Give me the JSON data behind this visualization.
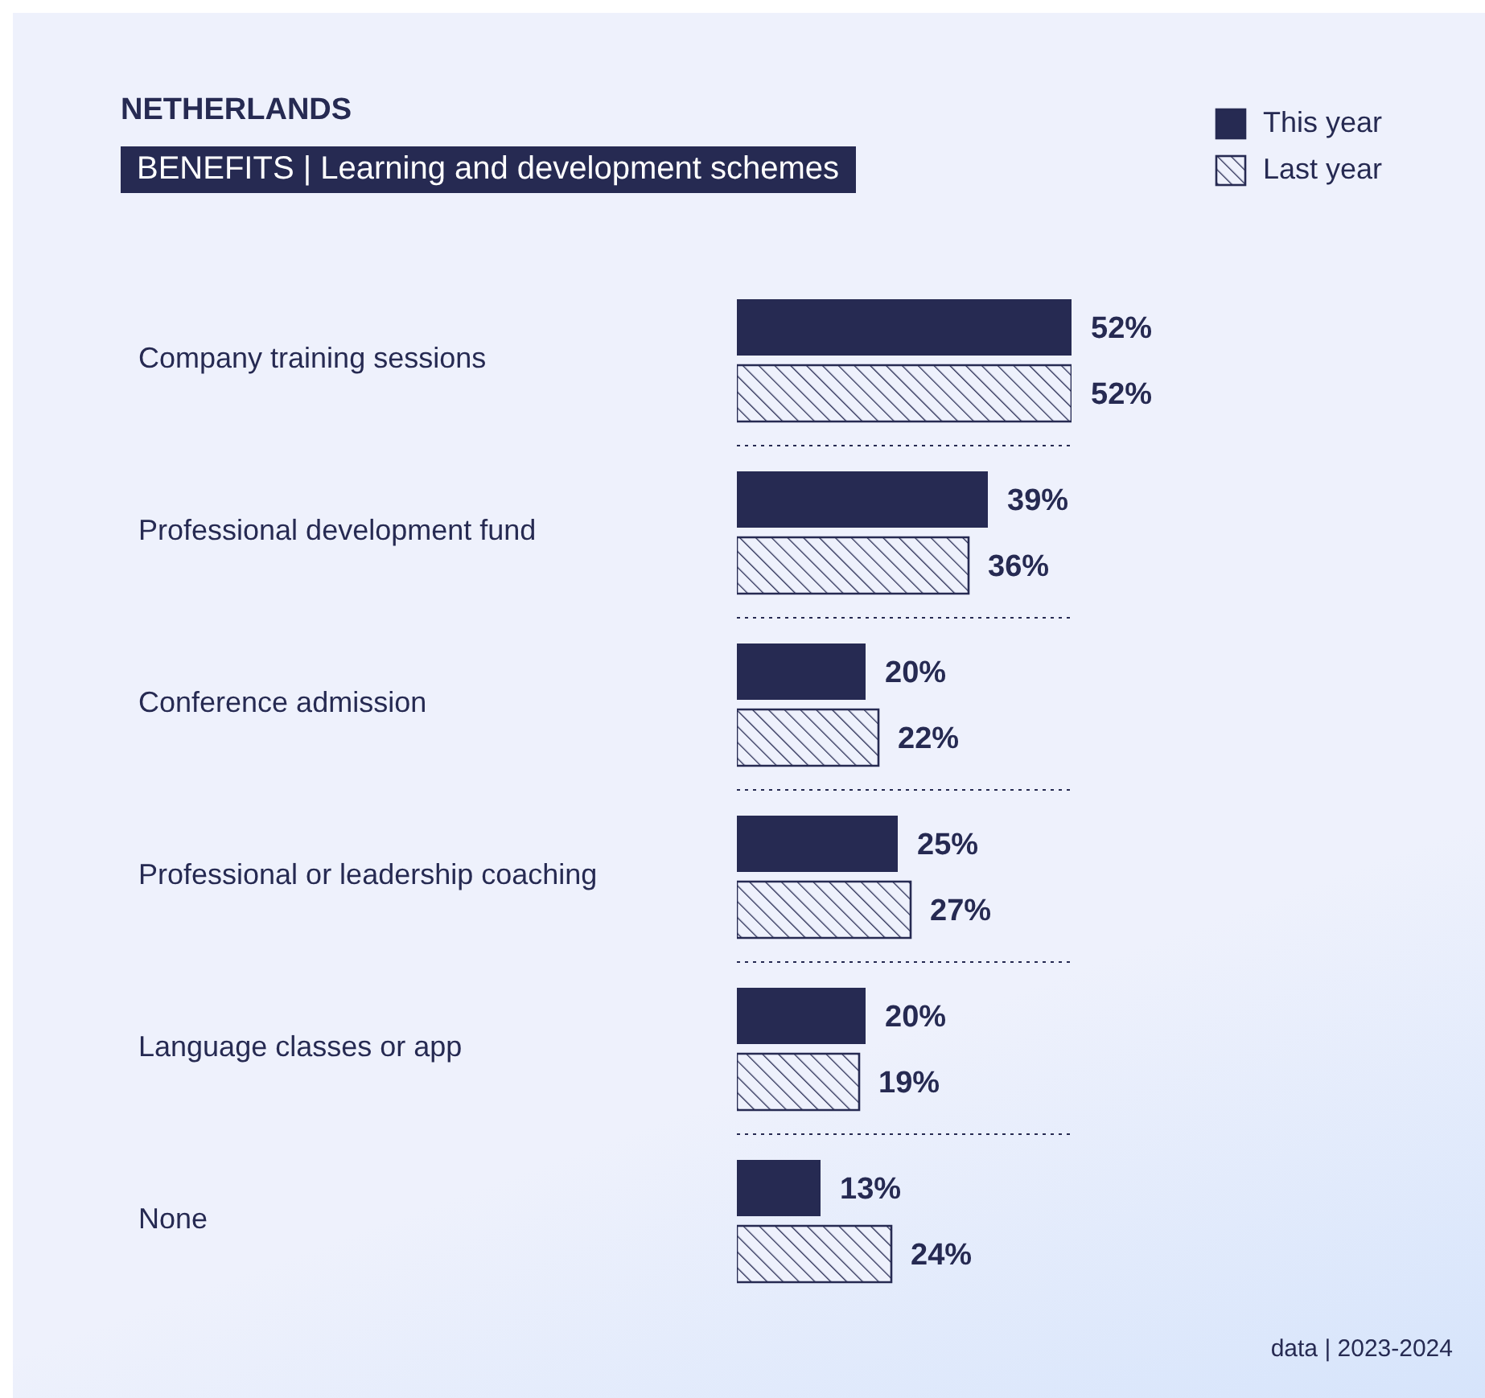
{
  "chart_data": {
    "type": "bar",
    "orientation": "horizontal",
    "title": "NETHERLANDS",
    "subtitle": "BENEFITS | Learning and development schemes",
    "categories": [
      "Company training sessions",
      "Professional development fund",
      "Conference admission",
      "Professional or leadership coaching",
      "Language classes or app",
      "None"
    ],
    "series": [
      {
        "name": "This year",
        "color": "#262a52",
        "values": [
          52,
          39,
          20,
          25,
          20,
          13
        ],
        "value_labels": [
          "52%",
          "39%",
          "20%",
          "25%",
          "20%",
          "13%"
        ]
      },
      {
        "name": "Last year",
        "color": "#262a52",
        "values": [
          52,
          36,
          22,
          27,
          19,
          24
        ],
        "value_labels": [
          "52%",
          "36%",
          "22%",
          "27%",
          "19%",
          "24%"
        ]
      }
    ],
    "tick_labels": false,
    "grid": "y",
    "legend": "top right",
    "annotations": [
      "data | 2023-2024"
    ]
  }
}
